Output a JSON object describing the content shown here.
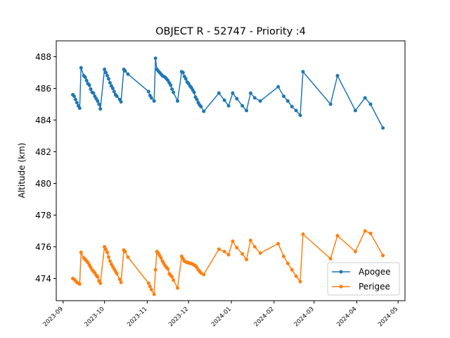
{
  "chart_data": {
    "type": "line",
    "title": "OBJECT R - 52747 - Priority :4",
    "xlabel": "",
    "ylabel": "Altitude (km)",
    "xlim": [
      "2023-08-27",
      "2024-05-06"
    ],
    "ylim": [
      472.6,
      489.0
    ],
    "x_ticks": [
      "2023-09",
      "2023-10",
      "2023-11",
      "2023-12",
      "2024-01",
      "2024-02",
      "2024-03",
      "2024-04",
      "2024-05"
    ],
    "y_ticks": [
      474,
      476,
      478,
      480,
      482,
      484,
      486,
      488
    ],
    "grid": false,
    "legend_position": "lower-right",
    "series": [
      {
        "name": "Apogee",
        "color": "#1f77b4",
        "points": [
          [
            "2023-09-08",
            485.6
          ],
          [
            "2023-09-09",
            485.5
          ],
          [
            "2023-09-10",
            485.3
          ],
          [
            "2023-09-11",
            485.1
          ],
          [
            "2023-09-12",
            484.9
          ],
          [
            "2023-09-13",
            484.75
          ],
          [
            "2023-09-14",
            487.3
          ],
          [
            "2023-09-16",
            486.8
          ],
          [
            "2023-09-17",
            486.7
          ],
          [
            "2023-09-18",
            486.5
          ],
          [
            "2023-09-19",
            486.3
          ],
          [
            "2023-09-20",
            486.2
          ],
          [
            "2023-09-21",
            485.95
          ],
          [
            "2023-09-22",
            485.75
          ],
          [
            "2023-09-23",
            485.7
          ],
          [
            "2023-09-24",
            485.5
          ],
          [
            "2023-09-25",
            485.35
          ],
          [
            "2023-09-26",
            485.2
          ],
          [
            "2023-09-27",
            485.0
          ],
          [
            "2023-09-28",
            484.7
          ],
          [
            "2023-10-01",
            487.2
          ],
          [
            "2023-10-02",
            487.0
          ],
          [
            "2023-10-03",
            486.8
          ],
          [
            "2023-10-04",
            486.6
          ],
          [
            "2023-10-05",
            486.35
          ],
          [
            "2023-10-06",
            486.15
          ],
          [
            "2023-10-07",
            486.0
          ],
          [
            "2023-10-08",
            485.8
          ],
          [
            "2023-10-09",
            485.6
          ],
          [
            "2023-10-10",
            485.5
          ],
          [
            "2023-10-12",
            485.3
          ],
          [
            "2023-10-13",
            485.15
          ],
          [
            "2023-10-15",
            487.2
          ],
          [
            "2023-10-16",
            487.1
          ],
          [
            "2023-10-18",
            486.9
          ],
          [
            "2023-11-02",
            485.8
          ],
          [
            "2023-11-03",
            485.55
          ],
          [
            "2023-11-04",
            485.4
          ],
          [
            "2023-11-06",
            485.2
          ],
          [
            "2023-11-07",
            487.9
          ],
          [
            "2023-11-08",
            487.2
          ],
          [
            "2023-11-09",
            487.1
          ],
          [
            "2023-11-10",
            487.0
          ],
          [
            "2023-11-11",
            486.9
          ],
          [
            "2023-11-12",
            486.8
          ],
          [
            "2023-11-13",
            486.75
          ],
          [
            "2023-11-14",
            486.7
          ],
          [
            "2023-11-15",
            486.6
          ],
          [
            "2023-11-16",
            486.5
          ],
          [
            "2023-11-17",
            486.35
          ],
          [
            "2023-11-18",
            486.2
          ],
          [
            "2023-11-19",
            485.95
          ],
          [
            "2023-11-20",
            485.75
          ],
          [
            "2023-11-23",
            485.2
          ],
          [
            "2023-11-26",
            487.05
          ],
          [
            "2023-11-27",
            487.0
          ],
          [
            "2023-11-28",
            486.75
          ],
          [
            "2023-11-29",
            486.6
          ],
          [
            "2023-11-30",
            486.4
          ],
          [
            "2023-12-01",
            486.3
          ],
          [
            "2023-12-02",
            486.15
          ],
          [
            "2023-12-03",
            486.05
          ],
          [
            "2023-12-04",
            485.9
          ],
          [
            "2023-12-05",
            485.75
          ],
          [
            "2023-12-06",
            485.45
          ],
          [
            "2023-12-07",
            485.3
          ],
          [
            "2023-12-08",
            485.1
          ],
          [
            "2023-12-09",
            484.95
          ],
          [
            "2023-12-10",
            484.85
          ],
          [
            "2023-12-12",
            484.55
          ],
          [
            "2023-12-23",
            485.7
          ],
          [
            "2023-12-27",
            485.25
          ],
          [
            "2023-12-30",
            484.9
          ],
          [
            "2024-01-02",
            485.7
          ],
          [
            "2024-01-05",
            485.35
          ],
          [
            "2024-01-09",
            484.9
          ],
          [
            "2024-01-12",
            484.6
          ],
          [
            "2024-01-15",
            485.7
          ],
          [
            "2024-01-18",
            485.4
          ],
          [
            "2024-01-22",
            485.2
          ],
          [
            "2024-02-04",
            486.1
          ],
          [
            "2024-02-08",
            485.5
          ],
          [
            "2024-02-11",
            485.2
          ],
          [
            "2024-02-14",
            484.85
          ],
          [
            "2024-02-17",
            484.6
          ],
          [
            "2024-02-20",
            484.3
          ],
          [
            "2024-02-22",
            487.05
          ],
          [
            "2024-03-13",
            485.0
          ],
          [
            "2024-03-18",
            486.8
          ],
          [
            "2024-03-31",
            484.6
          ],
          [
            "2024-04-07",
            485.4
          ],
          [
            "2024-04-11",
            485.0
          ],
          [
            "2024-04-20",
            483.5
          ]
        ]
      },
      {
        "name": "Perigee",
        "color": "#ff7f0e",
        "points": [
          [
            "2023-09-08",
            474.0
          ],
          [
            "2023-09-09",
            473.95
          ],
          [
            "2023-09-10",
            473.85
          ],
          [
            "2023-09-11",
            473.75
          ],
          [
            "2023-09-12",
            473.7
          ],
          [
            "2023-09-13",
            473.65
          ],
          [
            "2023-09-14",
            475.65
          ],
          [
            "2023-09-16",
            475.3
          ],
          [
            "2023-09-17",
            475.2
          ],
          [
            "2023-09-18",
            475.1
          ],
          [
            "2023-09-19",
            475.0
          ],
          [
            "2023-09-20",
            474.85
          ],
          [
            "2023-09-21",
            474.7
          ],
          [
            "2023-09-22",
            474.55
          ],
          [
            "2023-09-23",
            474.45
          ],
          [
            "2023-09-24",
            474.35
          ],
          [
            "2023-09-25",
            474.2
          ],
          [
            "2023-09-26",
            474.1
          ],
          [
            "2023-09-27",
            473.85
          ],
          [
            "2023-09-28",
            473.7
          ],
          [
            "2023-10-01",
            476.0
          ],
          [
            "2023-10-02",
            475.85
          ],
          [
            "2023-10-03",
            475.65
          ],
          [
            "2023-10-04",
            475.35
          ],
          [
            "2023-10-05",
            475.1
          ],
          [
            "2023-10-06",
            474.9
          ],
          [
            "2023-10-07",
            474.75
          ],
          [
            "2023-10-08",
            474.6
          ],
          [
            "2023-10-09",
            474.45
          ],
          [
            "2023-10-10",
            474.3
          ],
          [
            "2023-10-12",
            473.95
          ],
          [
            "2023-10-13",
            473.75
          ],
          [
            "2023-10-15",
            475.8
          ],
          [
            "2023-10-16",
            475.7
          ],
          [
            "2023-10-18",
            475.35
          ],
          [
            "2023-11-02",
            473.7
          ],
          [
            "2023-11-03",
            473.5
          ],
          [
            "2023-11-04",
            473.3
          ],
          [
            "2023-11-06",
            473.0
          ],
          [
            "2023-11-07",
            474.55
          ],
          [
            "2023-11-08",
            475.7
          ],
          [
            "2023-11-09",
            475.6
          ],
          [
            "2023-11-10",
            475.45
          ],
          [
            "2023-11-11",
            475.3
          ],
          [
            "2023-11-12",
            475.1
          ],
          [
            "2023-11-13",
            474.95
          ],
          [
            "2023-11-14",
            474.8
          ],
          [
            "2023-11-15",
            474.7
          ],
          [
            "2023-11-16",
            474.6
          ],
          [
            "2023-11-17",
            474.3
          ],
          [
            "2023-11-18",
            474.2
          ],
          [
            "2023-11-19",
            474.1
          ],
          [
            "2023-11-20",
            473.9
          ],
          [
            "2023-11-23",
            473.4
          ],
          [
            "2023-11-26",
            475.4
          ],
          [
            "2023-11-27",
            475.25
          ],
          [
            "2023-11-28",
            475.1
          ],
          [
            "2023-11-29",
            475.05
          ],
          [
            "2023-11-30",
            475.0
          ],
          [
            "2023-12-01",
            475.0
          ],
          [
            "2023-12-02",
            474.95
          ],
          [
            "2023-12-03",
            474.95
          ],
          [
            "2023-12-04",
            474.9
          ],
          [
            "2023-12-05",
            474.85
          ],
          [
            "2023-12-06",
            474.8
          ],
          [
            "2023-12-07",
            474.7
          ],
          [
            "2023-12-08",
            474.55
          ],
          [
            "2023-12-09",
            474.45
          ],
          [
            "2023-12-10",
            474.35
          ],
          [
            "2023-12-12",
            474.25
          ],
          [
            "2023-12-23",
            475.85
          ],
          [
            "2023-12-27",
            475.7
          ],
          [
            "2023-12-30",
            475.5
          ],
          [
            "2024-01-02",
            476.35
          ],
          [
            "2024-01-05",
            475.95
          ],
          [
            "2024-01-09",
            475.55
          ],
          [
            "2024-01-12",
            475.2
          ],
          [
            "2024-01-15",
            476.4
          ],
          [
            "2024-01-18",
            476.0
          ],
          [
            "2024-01-22",
            475.6
          ],
          [
            "2024-02-04",
            476.2
          ],
          [
            "2024-02-08",
            475.4
          ],
          [
            "2024-02-11",
            474.95
          ],
          [
            "2024-02-14",
            474.55
          ],
          [
            "2024-02-17",
            474.15
          ],
          [
            "2024-02-20",
            473.8
          ],
          [
            "2024-02-22",
            476.8
          ],
          [
            "2024-03-13",
            475.25
          ],
          [
            "2024-03-18",
            476.7
          ],
          [
            "2024-03-31",
            475.7
          ],
          [
            "2024-04-07",
            477.0
          ],
          [
            "2024-04-11",
            476.85
          ],
          [
            "2024-04-20",
            475.45
          ]
        ]
      }
    ]
  }
}
